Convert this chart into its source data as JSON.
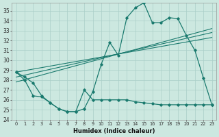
{
  "xlabel": "Humidex (Indice chaleur)",
  "bg_color": "#cce8e0",
  "line_color": "#1a7a6e",
  "grid_color": "#aacfc8",
  "xlim": [
    -0.5,
    23.5
  ],
  "ylim": [
    24,
    35.8
  ],
  "yticks": [
    24,
    25,
    26,
    27,
    28,
    29,
    30,
    31,
    32,
    33,
    34,
    35
  ],
  "xticks": [
    0,
    1,
    2,
    3,
    4,
    5,
    6,
    7,
    8,
    9,
    10,
    11,
    12,
    13,
    14,
    15,
    16,
    17,
    18,
    19,
    20,
    21,
    22,
    23
  ],
  "main_x": [
    0,
    1,
    2,
    3,
    4,
    5,
    6,
    7,
    8,
    9,
    10,
    11,
    12,
    13,
    14,
    15,
    16,
    17,
    18,
    19,
    20,
    21,
    22,
    23
  ],
  "main_y": [
    28.8,
    28.3,
    27.7,
    26.4,
    25.7,
    25.1,
    24.8,
    24.8,
    25.1,
    26.8,
    29.6,
    31.8,
    30.5,
    34.3,
    35.3,
    35.8,
    33.8,
    33.8,
    34.3,
    34.2,
    32.5,
    31.0,
    28.2,
    25.5
  ],
  "lower_x": [
    0,
    1,
    2,
    3,
    4,
    5,
    6,
    7,
    8,
    9,
    10,
    11,
    12,
    13,
    14,
    15,
    16,
    17,
    18,
    19,
    20,
    21,
    22,
    23
  ],
  "lower_y": [
    28.8,
    28.0,
    26.4,
    26.3,
    25.7,
    25.1,
    24.8,
    24.8,
    27.0,
    26.0,
    26.0,
    26.0,
    26.0,
    26.0,
    25.8,
    25.7,
    25.6,
    25.5,
    25.5,
    25.5,
    25.5,
    25.5,
    25.5,
    25.5
  ],
  "trend1_x": [
    0,
    23
  ],
  "trend1_y": [
    27.8,
    33.2
  ],
  "trend2_x": [
    0,
    23
  ],
  "trend2_y": [
    28.3,
    32.8
  ],
  "trend3_x": [
    0,
    23
  ],
  "trend3_y": [
    28.8,
    32.3
  ]
}
